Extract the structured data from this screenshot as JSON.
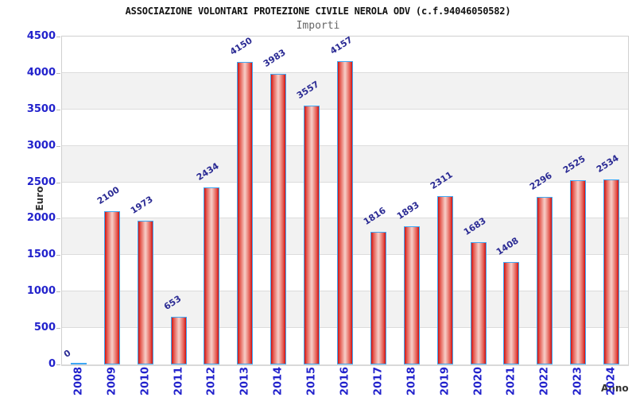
{
  "page": {
    "title": "ASSOCIAZIONE VOLONTARI PROTEZIONE CIVILE NEROLA ODV (c.f.94046050582)",
    "subtitle": "Importi"
  },
  "chart_data": {
    "type": "bar",
    "title": "ASSOCIAZIONE VOLONTARI PROTEZIONE CIVILE NEROLA ODV (c.f.94046050582)",
    "subtitle": "Importi",
    "xlabel": "Anno",
    "ylabel": "Euro",
    "categories": [
      "2008",
      "2009",
      "2010",
      "2011",
      "2012",
      "2013",
      "2014",
      "2015",
      "2016",
      "2017",
      "2018",
      "2019",
      "2020",
      "2021",
      "2022",
      "2023",
      "2024"
    ],
    "values": [
      0,
      2100,
      1973,
      653,
      2434,
      4150,
      3983,
      3557,
      4157,
      1816,
      1893,
      2311,
      1683,
      1408,
      2296,
      2525,
      2534
    ],
    "ylim": [
      0,
      4500
    ],
    "ytick_step": 500,
    "yticks": [
      0,
      500,
      1000,
      1500,
      2000,
      2500,
      3000,
      3500,
      4000,
      4500
    ],
    "grid": "alternating horizontal bands every 500, gridline at each 500",
    "legend_position": "none",
    "value_labels": "above each bar, rotated ~33deg",
    "colors": {
      "bar_edge": "#d01010",
      "bar_center": "#f6c9c2",
      "bar_border": "#3fa8f4",
      "value_label": "#2b2b94",
      "axis_tick_label": "#2222cc",
      "band_fill": "#f2f2f2",
      "plot_border": "#d0d0d0",
      "title_color": "#111111",
      "subtitle_color": "#666666",
      "axis_title_color": "#333333"
    }
  }
}
